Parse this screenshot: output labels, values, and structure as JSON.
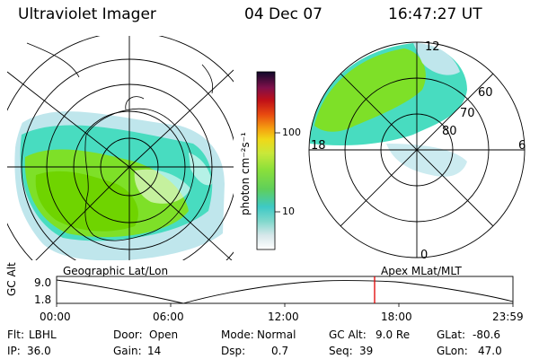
{
  "header": {
    "title": "Ultraviolet Imager",
    "date": "04 Dec 07",
    "time": "16:47:27 UT"
  },
  "colorbar": {
    "unit_label": "photon cm⁻²s⁻¹",
    "ticks": [
      "100",
      "10"
    ]
  },
  "right_map": {
    "mlt_labels": {
      "top": "12",
      "left": "18",
      "right": "6",
      "bottom": "0"
    },
    "lat_labels": [
      "60",
      "70",
      "80"
    ]
  },
  "panel_captions": {
    "left": "Geographic Lat/Lon",
    "right": "Apex MLat/MLT"
  },
  "altitude_plot": {
    "ylabel": "GC Alt",
    "yticks": [
      "9.0",
      "1.8"
    ],
    "xticks": [
      "00:00",
      "06:00",
      "12:00",
      "18:00",
      "23:59"
    ],
    "current_time_marker": "16:47"
  },
  "info": {
    "row1": [
      {
        "label": "Flt:",
        "value": "LBHL"
      },
      {
        "label": "Door:",
        "value": "Open"
      },
      {
        "label": "Mode:",
        "value": "Normal"
      },
      {
        "label": "GC Alt:",
        "value": "9.0 Re"
      },
      {
        "label": "GLat:",
        "value": "-80.6"
      }
    ],
    "row2": [
      {
        "label": "IP:",
        "value": "36.0"
      },
      {
        "label": "Gain:",
        "value": "14"
      },
      {
        "label": "Dsp:",
        "value": "0.7"
      },
      {
        "label": "Seq:",
        "value": "39"
      },
      {
        "label": "GLon:",
        "value": "47.0"
      }
    ]
  },
  "colors": {
    "marker": "#e00000",
    "grid": "#000000",
    "emission_bright": "#7ee028",
    "emission_mid": "#48dcc0",
    "emission_faint": "#bfe6ec"
  }
}
